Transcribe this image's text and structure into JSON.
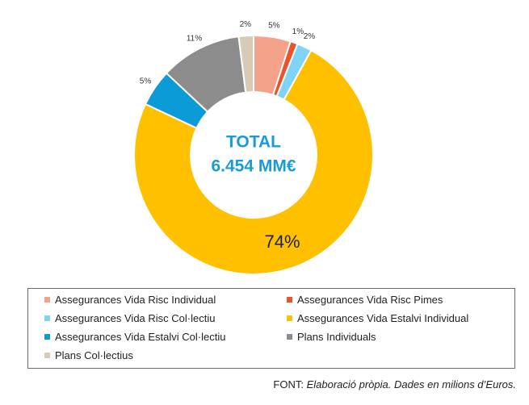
{
  "chart_data": {
    "type": "donut",
    "center_text": [
      "TOTAL",
      "6.454 MM€"
    ],
    "series": [
      {
        "name": "Assegurances Vida Risc Individual",
        "value": 5,
        "label": "5%",
        "color": "#f4a28a"
      },
      {
        "name": "Assegurances Vida Risc Pimes",
        "value": 1,
        "label": "1%",
        "color": "#e8532a"
      },
      {
        "name": "Assegurances Vida Risc Col·lectiu",
        "value": 2,
        "label": "2%",
        "color": "#7fd3f4"
      },
      {
        "name": "Assegurances Vida Estalvi Individual",
        "value": 74,
        "label": "74%",
        "color": "#ffc000"
      },
      {
        "name": "Assegurances Vida Estalvi Col·lectiu",
        "value": 5,
        "label": "5%",
        "color": "#0b9cd8"
      },
      {
        "name": "Plans Individuals",
        "value": 11,
        "label": "11%",
        "color": "#8c8c8c"
      },
      {
        "name": "Plans Col·lectius",
        "value": 2,
        "label": "2%",
        "color": "#d7cbb7"
      }
    ],
    "legend_position": "bottom"
  },
  "source": {
    "prefix": "FONT:",
    "text": "Elaboració pròpia. Dades en milions d’Euros."
  }
}
